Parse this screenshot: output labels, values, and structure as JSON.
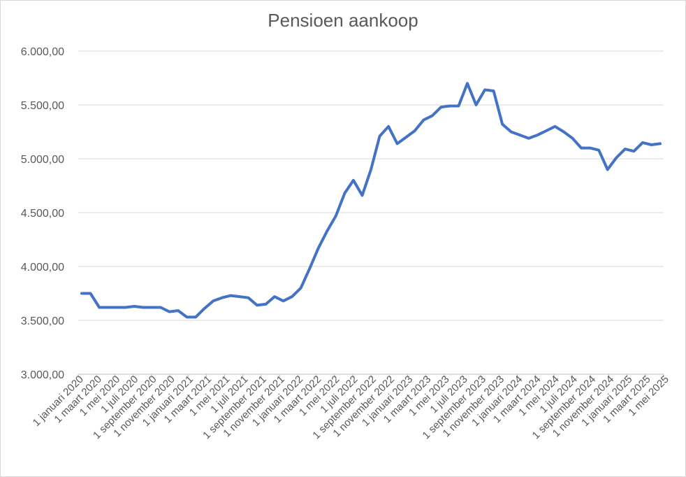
{
  "chart_data": {
    "type": "line",
    "title": "Pensioen aankoop",
    "xlabel": "",
    "ylabel": "",
    "ylim": [
      3000,
      6000
    ],
    "y_ticks": [
      "3.000,00",
      "3.500,00",
      "4.000,00",
      "4.500,00",
      "5.000,00",
      "5.500,00",
      "6.000,00"
    ],
    "x_ticks": [
      "1 januari 2020",
      "1 maart 2020",
      "1 mei 2020",
      "1 juli 2020",
      "1 september 2020",
      "1 november 2020",
      "1 januari 2021",
      "1 maart 2021",
      "1 mei 2021",
      "1 juli 2021",
      "1 september 2021",
      "1 november 2021",
      "1 januari 2022",
      "1 maart 2022",
      "1 mei 2022",
      "1 juli 2022",
      "1 september 2022",
      "1 november 2022",
      "1 januari 2023",
      "1 maart 2023",
      "1 mei 2023",
      "1 juli 2023",
      "1 september 2023",
      "1 november 2023",
      "1 januari 2024",
      "1 maart 2024",
      "1 mei 2024",
      "1 juli 2024",
      "1 september 2024",
      "1 november 2024",
      "1 januari 2025",
      "1 maart 2025",
      "1 mei 2025"
    ],
    "grid": true,
    "legend": "none",
    "line_color": "#4472c4",
    "series": [
      {
        "values": [
          3750,
          3750,
          3620,
          3620,
          3620,
          3620,
          3630,
          3620,
          3620,
          3620,
          3580,
          3590,
          3530,
          3530,
          3610,
          3680,
          3710,
          3730,
          3720,
          3710,
          3640,
          3650,
          3720,
          3680,
          3720,
          3800,
          3980,
          4170,
          4330,
          4470,
          4680,
          4800,
          4660,
          4900,
          5210,
          5300,
          5140,
          5200,
          5260,
          5360,
          5400,
          5480,
          5490,
          5490,
          5700,
          5500,
          5640,
          5630,
          5320,
          5250,
          5220,
          5190,
          5220,
          5260,
          5300,
          5250,
          5190,
          5100,
          5100,
          5080,
          4900,
          5010,
          5090,
          5070,
          5150,
          5130,
          5140
        ]
      }
    ]
  }
}
